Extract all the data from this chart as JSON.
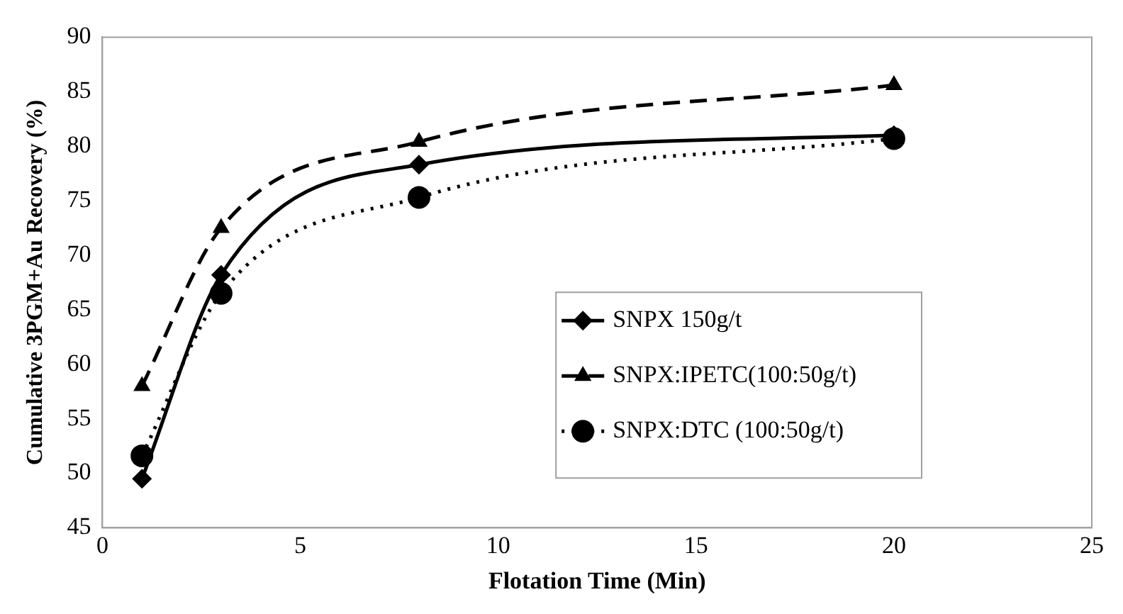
{
  "chart_data": {
    "type": "line",
    "xlabel": "Flotation Time (Min)",
    "ylabel": "Cumulative 3PGM+Au Recovery (%)",
    "x": [
      1,
      3,
      8,
      20
    ],
    "series": [
      {
        "name": "SNPX 150g/t",
        "color": "#000000",
        "values": [
          49.5,
          68.2,
          78.3,
          81.0
        ],
        "marker": "diamond",
        "line_style": "solid"
      },
      {
        "name": "SNPX:IPETC(100:50g/t)",
        "color": "#000000",
        "values": [
          58.0,
          72.5,
          80.4,
          85.6
        ],
        "marker": "triangle",
        "line_style": "dashed"
      },
      {
        "name": "SNPX:DTC (100:50g/t)",
        "color": "#000000",
        "values": [
          51.6,
          66.5,
          75.3,
          80.7
        ],
        "marker": "circle",
        "line_style": "dotted"
      }
    ],
    "xlim": [
      0,
      25
    ],
    "xticks": [
      0,
      5,
      10,
      15,
      20,
      25
    ],
    "ylim": [
      45,
      90
    ],
    "yticks": [
      45,
      50,
      55,
      60,
      65,
      70,
      75,
      80,
      85,
      90
    ],
    "grid": false,
    "legend": "right"
  }
}
